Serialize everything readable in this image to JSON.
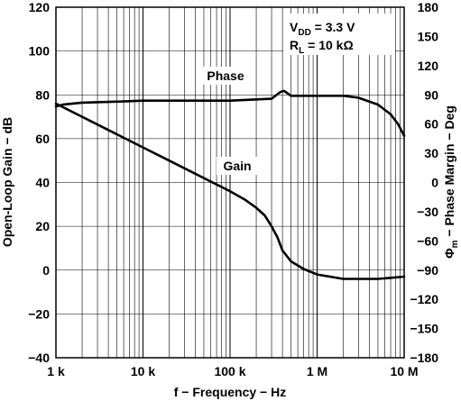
{
  "chart_data": {
    "type": "line",
    "xlabel": "f − Frequency − Hz",
    "ylabel_left": "Open-Loop Gain − dB",
    "ylabel_right_symbol": "Φ",
    "ylabel_right_sub": "m",
    "ylabel_right_rest": " − Phase Margin − Deg",
    "x_scale": "log",
    "xlim": [
      1000,
      10000000
    ],
    "ylim_left": [
      -40,
      120
    ],
    "ylim_right": [
      -180,
      180
    ],
    "x_ticks": [
      {
        "value": 1000,
        "label": "1 k"
      },
      {
        "value": 10000,
        "label": "10 k"
      },
      {
        "value": 100000,
        "label": "100 k"
      },
      {
        "value": 1000000,
        "label": "1 M"
      },
      {
        "value": 10000000,
        "label": "10 M"
      }
    ],
    "y_ticks_left": [
      -40,
      -20,
      0,
      20,
      40,
      60,
      80,
      100,
      120
    ],
    "y_ticks_right": [
      -180,
      -150,
      -120,
      -90,
      -60,
      -30,
      0,
      30,
      60,
      90,
      120,
      150,
      180
    ],
    "grid": true,
    "conditions": {
      "vdd_main": "V",
      "vdd_sub": "DD",
      "vdd_rest": " = 3.3 V",
      "rl_main": "R",
      "rl_sub": "L",
      "rl_rest": " = 10 kΩ"
    },
    "series": [
      {
        "name": "Gain",
        "axis": "left",
        "x": [
          1000,
          2000,
          5000,
          10000,
          20000,
          50000,
          100000,
          150000,
          200000,
          250000,
          300000,
          350000,
          400000,
          500000,
          700000,
          1000000,
          2000000,
          3000000,
          5000000,
          7000000,
          10000000
        ],
        "y": [
          76,
          70,
          62,
          56,
          50,
          42,
          36,
          32,
          28.5,
          25,
          20,
          15,
          9,
          4,
          0.5,
          -2,
          -4,
          -4,
          -4,
          -3.5,
          -3
        ]
      },
      {
        "name": "Phase",
        "axis": "right",
        "x": [
          1000,
          1200,
          2000,
          5000,
          10000,
          100000,
          300000,
          380000,
          420000,
          500000,
          700000,
          1000000,
          2000000,
          3000000,
          5000000,
          7000000,
          8500000,
          10000000
        ],
        "y": [
          78,
          80,
          82,
          83,
          84,
          84,
          86,
          93,
          94,
          89,
          89,
          89,
          89,
          87,
          80,
          70,
          60,
          48
        ]
      }
    ]
  }
}
